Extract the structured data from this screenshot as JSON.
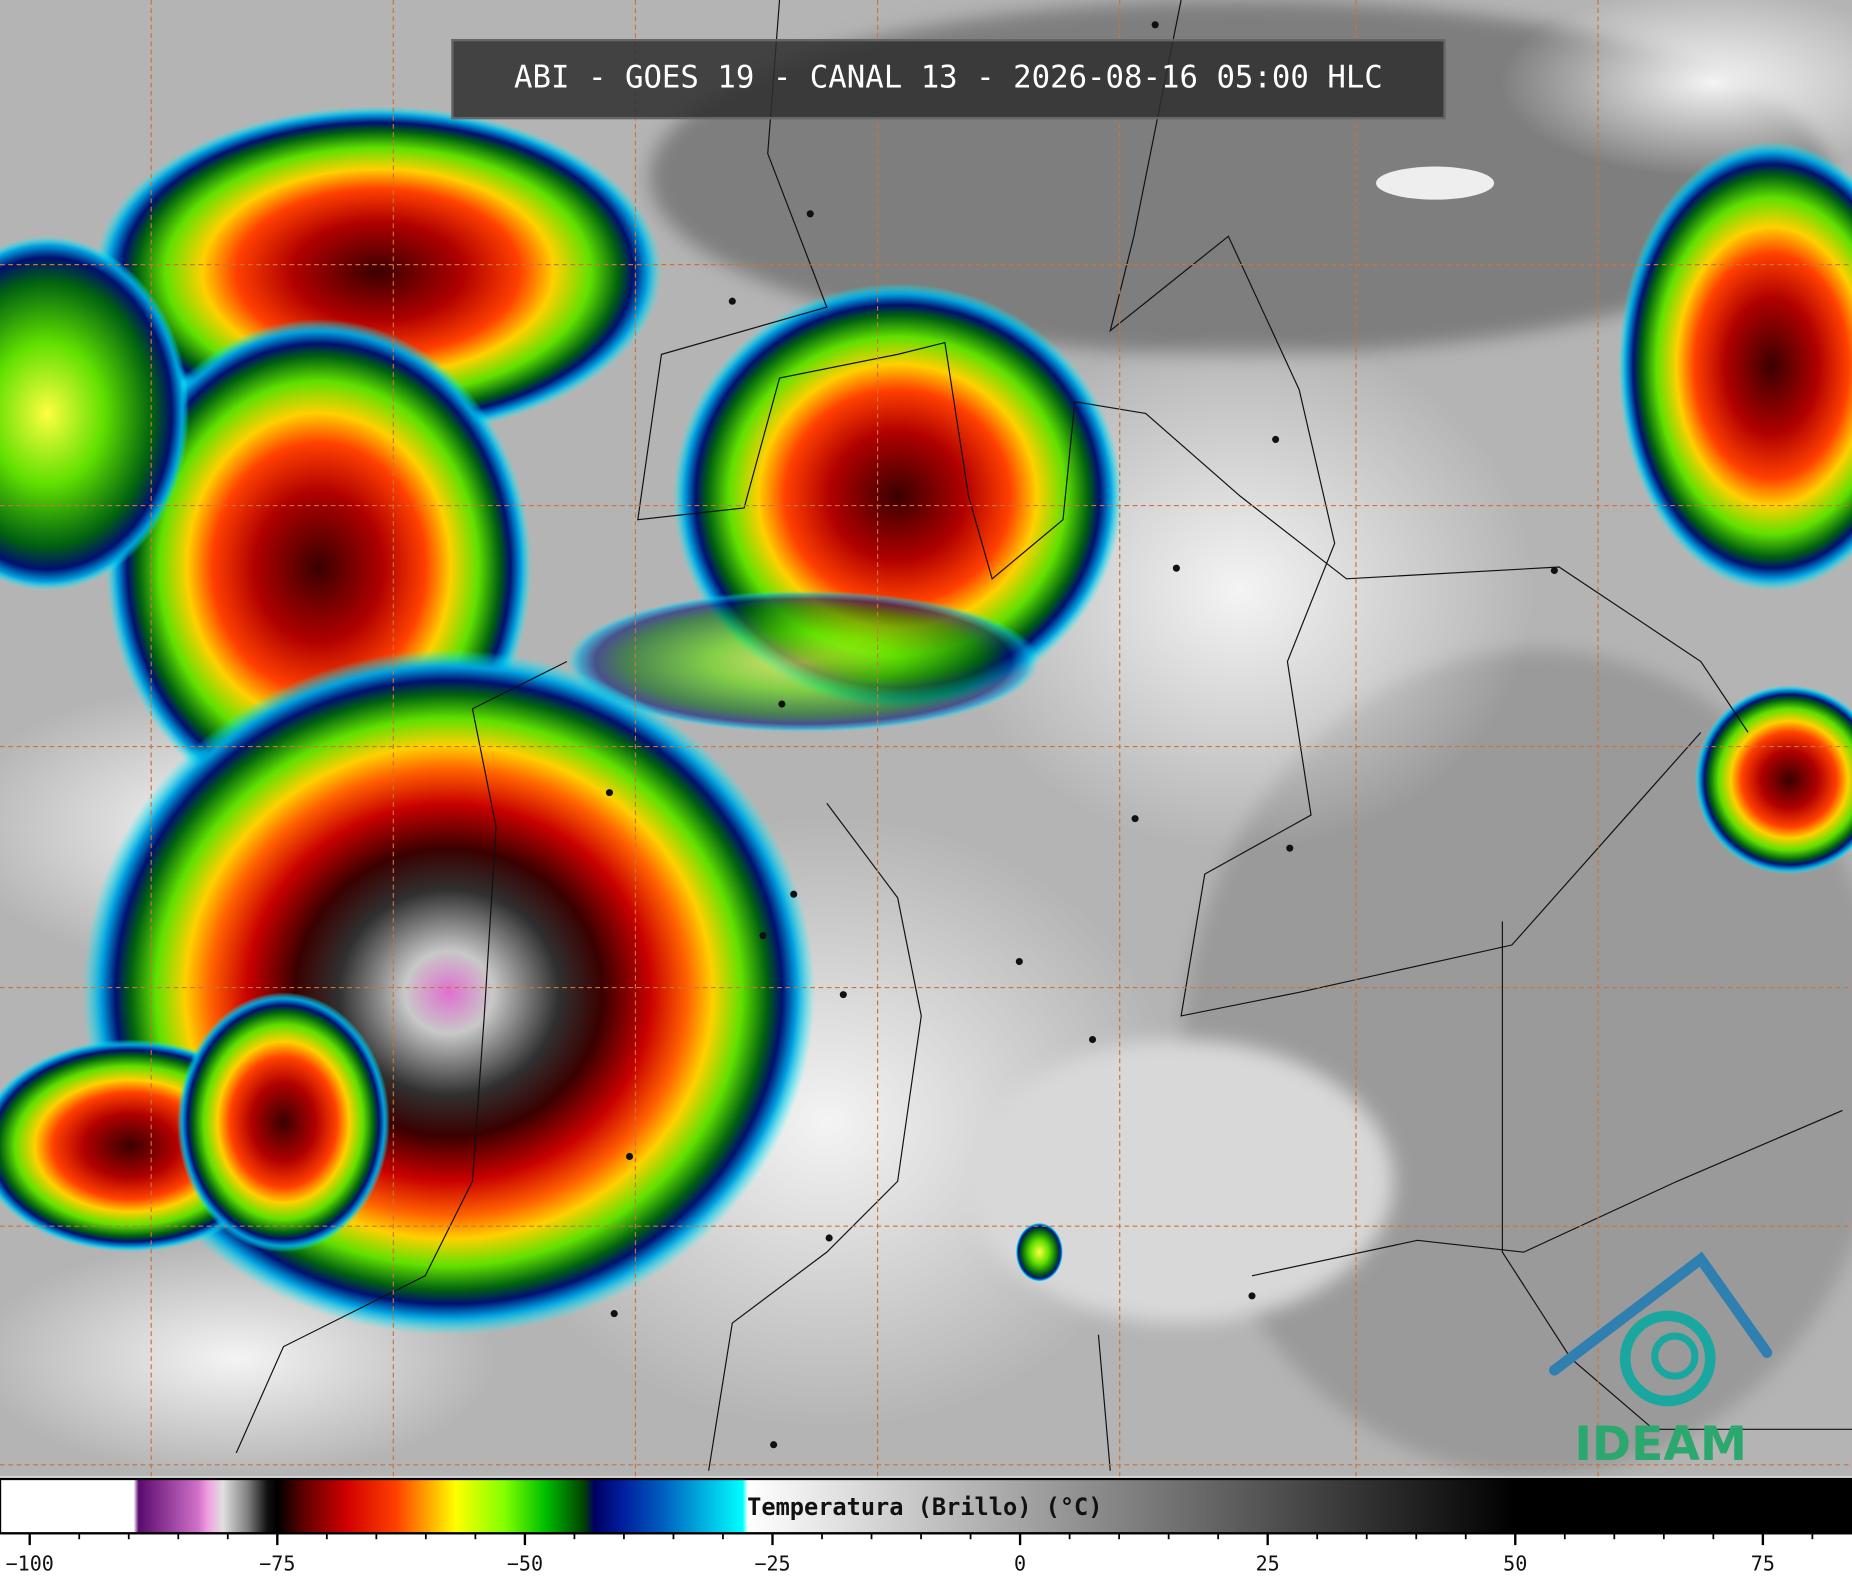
{
  "header": {
    "title": "ABI - GOES 19 - CANAL 13 - 2026-08-16 05:00 HLC"
  },
  "logo": {
    "text": "IDEAM"
  },
  "colorbar": {
    "label": "Temperatura (Brillo) (°C)",
    "lim": [
      -103,
      84
    ],
    "ticks": [
      {
        "value": -100,
        "label": "−100"
      },
      {
        "value": -75,
        "label": "−75"
      },
      {
        "value": -50,
        "label": "−50"
      },
      {
        "value": -25,
        "label": "−25"
      },
      0,
      25,
      50,
      75
    ],
    "minor_tick_step": 5,
    "colormap": [
      [
        -103,
        "#ffffff"
      ],
      [
        -89.5,
        "#ffffff"
      ],
      [
        -89,
        "#5a0a6e"
      ],
      [
        -83,
        "#d070c8"
      ],
      [
        -82,
        "#f0a0e0"
      ],
      [
        -80.5,
        "#e0e0e0"
      ],
      [
        -78,
        "#808080"
      ],
      [
        -76,
        "#101010"
      ],
      [
        -75,
        "#000000"
      ],
      [
        -72,
        "#6a0000"
      ],
      [
        -68,
        "#d00000"
      ],
      [
        -63,
        "#ff4000"
      ],
      [
        -60,
        "#ffa000"
      ],
      [
        -57,
        "#ffff00"
      ],
      [
        -52,
        "#80ff00"
      ],
      [
        -48,
        "#00c000"
      ],
      [
        -44,
        "#004000"
      ],
      [
        -43,
        "#000060"
      ],
      [
        -40,
        "#0020a0"
      ],
      [
        -36,
        "#0060c0"
      ],
      [
        -32,
        "#00b0e0"
      ],
      [
        -28,
        "#00ffff"
      ],
      [
        -27.5,
        "#ffffff"
      ],
      [
        50,
        "#000000"
      ],
      [
        84,
        "#000000"
      ]
    ]
  }
}
